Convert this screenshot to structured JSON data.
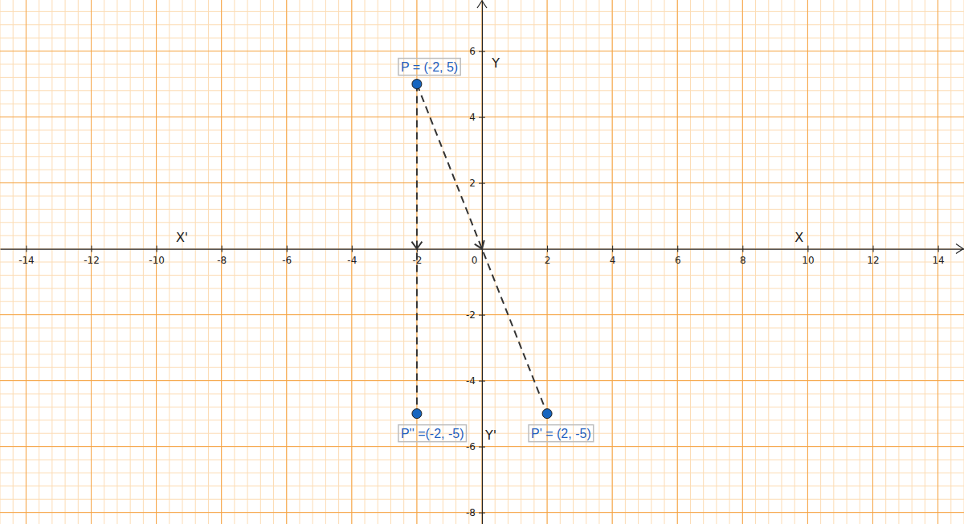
{
  "chart_data": {
    "type": "scatter",
    "xlim": [
      -14.8,
      14.8
    ],
    "ylim": [
      -8.35,
      7.55
    ],
    "xticks": [
      -14,
      -12,
      -10,
      -8,
      -6,
      -4,
      -2,
      0,
      2,
      4,
      6,
      8,
      10,
      12,
      14
    ],
    "yticks": [
      -8,
      -6,
      -4,
      -2,
      2,
      4,
      6
    ],
    "grid": true,
    "marker": "circle",
    "line_style": "dashed",
    "color": "#1565c0",
    "points": {
      "x": [
        -2,
        2,
        -2
      ],
      "y": [
        5,
        -5,
        -5
      ],
      "labels": [
        "P = (-2, 5)",
        "P' = (2, -5)",
        "P'' =(-2, -5)"
      ]
    },
    "annotations": [
      {
        "text": "X'",
        "x": -9.4,
        "y": 0.2
      },
      {
        "text": "X",
        "x": 9.6,
        "y": 0.2
      },
      {
        "text": "Y",
        "x": 0.3,
        "y": 5.5
      },
      {
        "text": "Y'",
        "x": 0.1,
        "y": -5.8
      }
    ]
  }
}
